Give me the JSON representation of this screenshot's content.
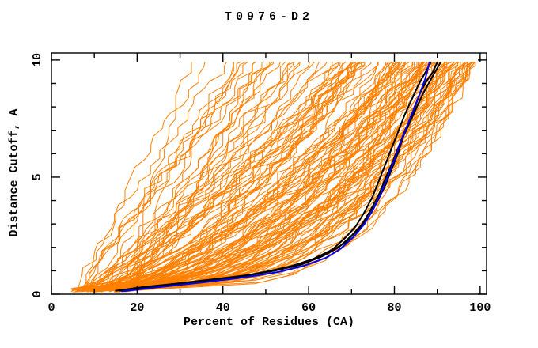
{
  "chart_data": {
    "type": "line",
    "title": "T0976-D2",
    "xlabel": "Percent of Residues (CA)",
    "ylabel": "Distance Cutoff, A",
    "xlim": [
      0,
      101.5
    ],
    "ylim": [
      0,
      10.3
    ],
    "x_ticks_major": [
      0,
      20,
      40,
      60,
      80,
      100
    ],
    "x_ticks_minor": [
      10,
      30,
      50,
      70,
      90
    ],
    "y_ticks_major": [
      0,
      5,
      10
    ],
    "y_ticks_minor": [
      1,
      2,
      3,
      4,
      6,
      7,
      8,
      9
    ],
    "grid": false,
    "legend": "none",
    "background": "#ffffff",
    "frame_color": "#000000",
    "note": "Cumulative accuracy curves: percent of CA residues under each distance cutoff. ~130 thin orange prediction-model curves span an envelope from (5-18,0) at bottom to (25-100,9.9) at top with a dense band along the bottom; 3 thick black best-model curves and 1 blue highlighted-model curve rise together to ~x=90 at the top.",
    "series": [
      {
        "name": "prediction-models",
        "color": "#ff8000",
        "width": 1,
        "count": 130,
        "generator": {
          "seed": 20976,
          "y_step": 0.33,
          "y_end": 9.9,
          "x_start_range": [
            4.5,
            18
          ],
          "x_top_range": [
            25,
            99
          ],
          "top_skew": 0.45,
          "shape_exponent_range": [
            0.28,
            1.35
          ],
          "x_noise": 1.6,
          "vertical_jump_prob": 0.35
        }
      },
      {
        "name": "best-models",
        "color": "#000000",
        "width": 2,
        "curves": [
          [
            [
              16,
              0.15
            ],
            [
              24,
              0.35
            ],
            [
              34,
              0.55
            ],
            [
              44,
              0.75
            ],
            [
              52,
              1.0
            ],
            [
              58,
              1.25
            ],
            [
              63,
              1.6
            ],
            [
              67,
              2.0
            ],
            [
              70,
              2.5
            ],
            [
              72.5,
              3.0
            ],
            [
              74.5,
              3.6
            ],
            [
              76.5,
              4.3
            ],
            [
              78,
              5.0
            ],
            [
              79.5,
              5.6
            ],
            [
              81,
              6.3
            ],
            [
              82.5,
              7.0
            ],
            [
              84,
              7.6
            ],
            [
              85,
              8.1
            ],
            [
              86,
              8.6
            ],
            [
              87.5,
              9.1
            ],
            [
              89,
              9.5
            ],
            [
              90,
              9.9
            ]
          ],
          [
            [
              17,
              0.15
            ],
            [
              26,
              0.38
            ],
            [
              36,
              0.6
            ],
            [
              46,
              0.82
            ],
            [
              54,
              1.1
            ],
            [
              60,
              1.4
            ],
            [
              65,
              1.8
            ],
            [
              68.5,
              2.2
            ],
            [
              71.5,
              2.75
            ],
            [
              74,
              3.3
            ],
            [
              76,
              3.95
            ],
            [
              78,
              4.7
            ],
            [
              79.5,
              5.4
            ],
            [
              81,
              6.1
            ],
            [
              82,
              6.7
            ],
            [
              83.5,
              7.3
            ],
            [
              85,
              7.9
            ],
            [
              86.5,
              8.5
            ],
            [
              88,
              9.0
            ],
            [
              89.5,
              9.5
            ],
            [
              90.8,
              9.9
            ]
          ],
          [
            [
              15,
              0.15
            ],
            [
              22,
              0.32
            ],
            [
              32,
              0.5
            ],
            [
              42,
              0.7
            ],
            [
              50,
              0.95
            ],
            [
              56,
              1.2
            ],
            [
              61,
              1.5
            ],
            [
              65.5,
              1.9
            ],
            [
              68.5,
              2.4
            ],
            [
              71,
              2.9
            ],
            [
              73,
              3.5
            ],
            [
              75,
              4.2
            ],
            [
              76.5,
              4.9
            ],
            [
              78,
              5.6
            ],
            [
              79.5,
              6.3
            ],
            [
              81,
              7.0
            ],
            [
              82.5,
              7.7
            ],
            [
              84,
              8.3
            ],
            [
              85.5,
              8.9
            ],
            [
              87,
              9.4
            ],
            [
              88.5,
              9.9
            ]
          ]
        ]
      },
      {
        "name": "highlighted-model",
        "color": "#0000ee",
        "width": 2,
        "curves": [
          [
            [
              16.5,
              0.12
            ],
            [
              25,
              0.3
            ],
            [
              35,
              0.5
            ],
            [
              45,
              0.72
            ],
            [
              53,
              0.95
            ],
            [
              59,
              1.22
            ],
            [
              64,
              1.55
            ],
            [
              67.5,
              1.95
            ],
            [
              70.5,
              2.45
            ],
            [
              73,
              3.0
            ],
            [
              75,
              3.6
            ],
            [
              77,
              4.35
            ],
            [
              78.5,
              5.05
            ],
            [
              80,
              5.75
            ],
            [
              81.5,
              6.5
            ],
            [
              83,
              7.2
            ],
            [
              84.5,
              7.9
            ],
            [
              86,
              8.6
            ],
            [
              87.2,
              9.2
            ],
            [
              88.2,
              9.9
            ]
          ]
        ]
      }
    ]
  }
}
